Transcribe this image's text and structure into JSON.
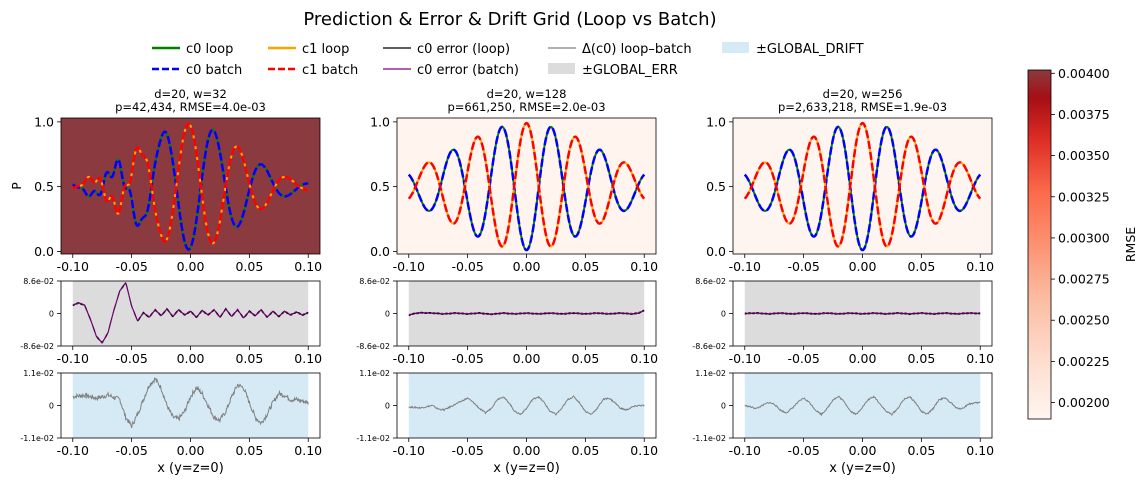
{
  "title": "Prediction & Error & Drift Grid (Loop vs Batch)",
  "legend": {
    "placement": "top-center",
    "items": [
      {
        "label": "c0 loop",
        "color": "#008000",
        "style": "solid"
      },
      {
        "label": "c0 batch",
        "color": "#0000ff",
        "style": "dashed"
      },
      {
        "label": "c1 loop",
        "color": "#ffa500",
        "style": "solid"
      },
      {
        "label": "c1 batch",
        "color": "#ff0000",
        "style": "dashed"
      },
      {
        "label": "c0 error (loop)",
        "color": "#000000",
        "style": "thin"
      },
      {
        "label": "c0 error (batch)",
        "color": "#800080",
        "style": "thin"
      },
      {
        "label": "Δ(c0) loop–batch",
        "color": "#808080",
        "style": "thin"
      },
      {
        "label": "±GLOBAL_ERR",
        "color": "#dcdcdc",
        "style": "patch"
      },
      {
        "label": "±GLOBAL_DRIFT",
        "color": "#d6eaf5",
        "style": "patch"
      }
    ]
  },
  "colorbar": {
    "label": "RMSE",
    "range": [
      0.0019,
      0.00402
    ],
    "ticks": [
      "0.00200",
      "0.00225",
      "0.00250",
      "0.00275",
      "0.00300",
      "0.00325",
      "0.00350",
      "0.00375",
      "0.00400"
    ],
    "tick_values": [
      0.002,
      0.00225,
      0.0025,
      0.00275,
      0.003,
      0.00325,
      0.0035,
      0.00375,
      0.004
    ],
    "colormap": "Reds"
  },
  "chart_data": [
    {
      "type": "line",
      "column": 1,
      "title_line1": "d=20, w=32",
      "title_line2": "p=42,434, RMSE=4.0e-03",
      "rmse": 0.004,
      "background": "#8b3a3f",
      "ylabel": "P",
      "xlim": [
        -0.11,
        0.11
      ],
      "ylim": [
        -0.02,
        1.03
      ],
      "xticks": [
        "-0.10",
        "-0.05",
        "0.00",
        "0.05",
        "0.10"
      ],
      "yticks": [
        "0.0",
        "0.5",
        "1.0"
      ],
      "xtick_values": [
        -0.1,
        -0.05,
        0,
        0.05,
        0.1
      ],
      "ytick_values": [
        0,
        0.5,
        1
      ],
      "prediction_envelope": {
        "amplitude": 0.485,
        "width": 0.042,
        "wavenumber": 150,
        "noise": 0.06
      },
      "error": {
        "ylim": [
          -0.086,
          0.086
        ],
        "yticks": [
          "8.6e-02",
          "0",
          "-8.6e-02"
        ],
        "band": 0.086,
        "points": [
          [
            -0.1,
            0.022
          ],
          [
            -0.095,
            0.028
          ],
          [
            -0.09,
            0.022
          ],
          [
            -0.085,
            -0.015
          ],
          [
            -0.08,
            -0.06
          ],
          [
            -0.075,
            -0.078
          ],
          [
            -0.07,
            -0.05
          ],
          [
            -0.065,
            0.01
          ],
          [
            -0.06,
            0.06
          ],
          [
            -0.055,
            0.082
          ],
          [
            -0.05,
            0.02
          ],
          [
            -0.045,
            -0.02
          ],
          [
            -0.04,
            0.002
          ],
          [
            -0.035,
            -0.01
          ],
          [
            -0.03,
            0.01
          ],
          [
            -0.025,
            -0.006
          ],
          [
            -0.02,
            0.012
          ],
          [
            -0.015,
            -0.008
          ],
          [
            -0.01,
            0.01
          ],
          [
            -0.005,
            -0.004
          ],
          [
            0,
            0.006
          ],
          [
            0.005,
            -0.01
          ],
          [
            0.01,
            0.008
          ],
          [
            0.015,
            -0.004
          ],
          [
            0.02,
            0.01
          ],
          [
            0.025,
            -0.01
          ],
          [
            0.03,
            0.012
          ],
          [
            0.035,
            -0.008
          ],
          [
            0.04,
            0.01
          ],
          [
            0.045,
            -0.012
          ],
          [
            0.05,
            0.006
          ],
          [
            0.055,
            -0.006
          ],
          [
            0.06,
            0.01
          ],
          [
            0.065,
            -0.01
          ],
          [
            0.07,
            0.006
          ],
          [
            0.075,
            -0.008
          ],
          [
            0.08,
            0.006
          ],
          [
            0.085,
            -0.004
          ],
          [
            0.09,
            0.004
          ],
          [
            0.095,
            -0.004
          ],
          [
            0.1,
            0.002
          ]
        ]
      },
      "drift": {
        "ylim": [
          -0.011,
          0.011
        ],
        "yticks": [
          "1.1e-02",
          "0",
          "-1.1e-02"
        ],
        "band": 0.011,
        "xlabel": "x (y=z=0)",
        "points": [
          [
            -0.1,
            0.003
          ],
          [
            -0.09,
            0.0035
          ],
          [
            -0.08,
            0.0025
          ],
          [
            -0.07,
            0.0035
          ],
          [
            -0.06,
            0.002
          ],
          [
            -0.055,
            -0.004
          ],
          [
            -0.05,
            -0.007
          ],
          [
            -0.045,
            -0.003
          ],
          [
            -0.04,
            0.002
          ],
          [
            -0.035,
            0.007
          ],
          [
            -0.03,
            0.009
          ],
          [
            -0.025,
            0.006
          ],
          [
            -0.02,
            0.0
          ],
          [
            -0.015,
            -0.004
          ],
          [
            -0.01,
            -0.0045
          ],
          [
            -0.005,
            -0.002
          ],
          [
            0,
            0.003
          ],
          [
            0.005,
            0.006
          ],
          [
            0.01,
            0.004
          ],
          [
            0.015,
            0.0
          ],
          [
            0.02,
            -0.004
          ],
          [
            0.025,
            -0.005
          ],
          [
            0.03,
            -0.002
          ],
          [
            0.035,
            0.003
          ],
          [
            0.04,
            0.007
          ],
          [
            0.045,
            0.006
          ],
          [
            0.05,
            0.001
          ],
          [
            0.055,
            -0.004
          ],
          [
            0.06,
            -0.006
          ],
          [
            0.065,
            -0.003
          ],
          [
            0.07,
            0.001
          ],
          [
            0.075,
            0.004
          ],
          [
            0.08,
            0.0035
          ],
          [
            0.085,
            0.002
          ],
          [
            0.09,
            0.002
          ],
          [
            0.095,
            0.0015
          ],
          [
            0.1,
            0.001
          ]
        ]
      }
    },
    {
      "type": "line",
      "column": 2,
      "title_line1": "d=20, w=128",
      "title_line2": "p=661,250, RMSE=2.0e-03",
      "rmse": 0.002,
      "background": "#fff4ee",
      "ylabel": "",
      "xlim": [
        -0.11,
        0.11
      ],
      "ylim": [
        -0.02,
        1.03
      ],
      "xticks": [
        "-0.10",
        "-0.05",
        "0.00",
        "0.05",
        "0.10"
      ],
      "yticks": [
        "0.0",
        "0.5",
        "1.0"
      ],
      "xtick_values": [
        -0.1,
        -0.05,
        0,
        0.05,
        0.1
      ],
      "ytick_values": [
        0,
        0.5,
        1
      ],
      "prediction_envelope": {
        "amplitude": 0.49,
        "width": 0.06,
        "wavenumber": 150,
        "noise": 0.0
      },
      "error": {
        "ylim": [
          -0.086,
          0.086
        ],
        "yticks": [
          "8.6e-02",
          "0",
          "-8.6e-02"
        ],
        "band": 0.086,
        "points": [
          [
            -0.1,
            -0.004
          ],
          [
            -0.095,
            0.0
          ],
          [
            -0.09,
            0.002
          ],
          [
            -0.08,
            0.001
          ],
          [
            -0.07,
            -0.001
          ],
          [
            -0.06,
            0.001
          ],
          [
            -0.05,
            -0.001
          ],
          [
            -0.04,
            0.001
          ],
          [
            -0.03,
            -0.002
          ],
          [
            -0.02,
            0.001
          ],
          [
            -0.01,
            -0.001
          ],
          [
            0,
            0.001
          ],
          [
            0.01,
            -0.001
          ],
          [
            0.02,
            0.001
          ],
          [
            0.03,
            -0.001
          ],
          [
            0.04,
            0.001
          ],
          [
            0.05,
            -0.001
          ],
          [
            0.06,
            0.001
          ],
          [
            0.07,
            -0.001
          ],
          [
            0.08,
            0.001
          ],
          [
            0.09,
            -0.001
          ],
          [
            0.095,
            0.001
          ],
          [
            0.1,
            0.008
          ]
        ]
      },
      "drift": {
        "ylim": [
          -0.011,
          0.011
        ],
        "yticks": [
          "1.1e-02",
          "0",
          "-1.1e-02"
        ],
        "band": 0.011,
        "xlabel": "x (y=z=0)",
        "points": [
          [
            -0.1,
            -0.0005
          ],
          [
            -0.09,
            -0.0008
          ],
          [
            -0.08,
            0.0
          ],
          [
            -0.075,
            -0.0012
          ],
          [
            -0.07,
            -0.0015
          ],
          [
            -0.06,
            0.0005
          ],
          [
            -0.05,
            0.0025
          ],
          [
            -0.045,
            0.001
          ],
          [
            -0.04,
            -0.001
          ],
          [
            -0.035,
            -0.0025
          ],
          [
            -0.03,
            -0.001
          ],
          [
            -0.025,
            0.002
          ],
          [
            -0.02,
            0.003
          ],
          [
            -0.015,
            0.001
          ],
          [
            -0.01,
            -0.002
          ],
          [
            -0.005,
            -0.003
          ],
          [
            0,
            -0.001
          ],
          [
            0.005,
            0.002
          ],
          [
            0.01,
            0.003
          ],
          [
            0.015,
            0.001
          ],
          [
            0.02,
            -0.002
          ],
          [
            0.025,
            -0.003
          ],
          [
            0.03,
            -0.001
          ],
          [
            0.035,
            0.002
          ],
          [
            0.04,
            0.003
          ],
          [
            0.045,
            0.001
          ],
          [
            0.05,
            -0.002
          ],
          [
            0.055,
            -0.003
          ],
          [
            0.06,
            -0.001
          ],
          [
            0.065,
            0.002
          ],
          [
            0.07,
            0.0025
          ],
          [
            0.075,
            0.001
          ],
          [
            0.08,
            -0.001
          ],
          [
            0.085,
            -0.0015
          ],
          [
            0.09,
            -0.0005
          ],
          [
            0.095,
            0.0
          ],
          [
            0.1,
            0.0
          ]
        ]
      }
    },
    {
      "type": "line",
      "column": 3,
      "title_line1": "d=20, w=256",
      "title_line2": "p=2,633,218, RMSE=1.9e-03",
      "rmse": 0.0019,
      "background": "#fff5f0",
      "ylabel": "",
      "xlim": [
        -0.11,
        0.11
      ],
      "ylim": [
        -0.02,
        1.03
      ],
      "xticks": [
        "-0.10",
        "-0.05",
        "0.00",
        "0.05",
        "0.10"
      ],
      "yticks": [
        "0.0",
        "0.5",
        "1.0"
      ],
      "xtick_values": [
        -0.1,
        -0.05,
        0,
        0.05,
        0.1
      ],
      "ytick_values": [
        0,
        0.5,
        1
      ],
      "prediction_envelope": {
        "amplitude": 0.49,
        "width": 0.06,
        "wavenumber": 150,
        "noise": 0.0
      },
      "error": {
        "ylim": [
          -0.086,
          0.086
        ],
        "yticks": [
          "8.6e-02",
          "0",
          "-8.6e-02"
        ],
        "band": 0.086,
        "points": [
          [
            -0.1,
            0.0
          ],
          [
            -0.09,
            0.001
          ],
          [
            -0.08,
            -0.001
          ],
          [
            -0.07,
            0.001
          ],
          [
            -0.06,
            -0.001
          ],
          [
            -0.05,
            0.001
          ],
          [
            -0.04,
            -0.001
          ],
          [
            -0.03,
            0.001
          ],
          [
            -0.02,
            -0.001
          ],
          [
            -0.01,
            0.001
          ],
          [
            0,
            -0.001
          ],
          [
            0.01,
            0.001
          ],
          [
            0.02,
            -0.001
          ],
          [
            0.03,
            0.001
          ],
          [
            0.04,
            -0.001
          ],
          [
            0.05,
            0.001
          ],
          [
            0.06,
            -0.001
          ],
          [
            0.07,
            0.001
          ],
          [
            0.08,
            -0.001
          ],
          [
            0.09,
            0.001
          ],
          [
            0.1,
            0.0
          ]
        ]
      },
      "drift": {
        "ylim": [
          -0.011,
          0.011
        ],
        "yticks": [
          "1.1e-02",
          "0",
          "-1.1e-02"
        ],
        "band": 0.011,
        "xlabel": "x (y=z=0)",
        "points": [
          [
            -0.1,
            0.0
          ],
          [
            -0.09,
            -0.001
          ],
          [
            -0.085,
            0.0
          ],
          [
            -0.08,
            0.001
          ],
          [
            -0.075,
            0.0005
          ],
          [
            -0.07,
            -0.0015
          ],
          [
            -0.065,
            -0.0025
          ],
          [
            -0.06,
            -0.001
          ],
          [
            -0.055,
            0.001
          ],
          [
            -0.05,
            0.0025
          ],
          [
            -0.045,
            0.001
          ],
          [
            -0.04,
            -0.0015
          ],
          [
            -0.035,
            -0.003
          ],
          [
            -0.03,
            -0.001
          ],
          [
            -0.025,
            0.002
          ],
          [
            -0.02,
            0.003
          ],
          [
            -0.015,
            0.001
          ],
          [
            -0.01,
            -0.002
          ],
          [
            -0.005,
            -0.003
          ],
          [
            0,
            -0.0005
          ],
          [
            0.005,
            0.002
          ],
          [
            0.01,
            0.003
          ],
          [
            0.015,
            0.0005
          ],
          [
            0.02,
            -0.002
          ],
          [
            0.025,
            -0.003
          ],
          [
            0.03,
            -0.001
          ],
          [
            0.035,
            0.002
          ],
          [
            0.04,
            0.003
          ],
          [
            0.045,
            0.001
          ],
          [
            0.05,
            -0.002
          ],
          [
            0.055,
            -0.003
          ],
          [
            0.06,
            -0.001
          ],
          [
            0.065,
            0.002
          ],
          [
            0.07,
            0.0025
          ],
          [
            0.075,
            0.001
          ],
          [
            0.08,
            -0.001
          ],
          [
            0.085,
            -0.001
          ],
          [
            0.09,
            0.0005
          ],
          [
            0.095,
            0.0008
          ],
          [
            0.1,
            0.001
          ]
        ]
      }
    }
  ]
}
